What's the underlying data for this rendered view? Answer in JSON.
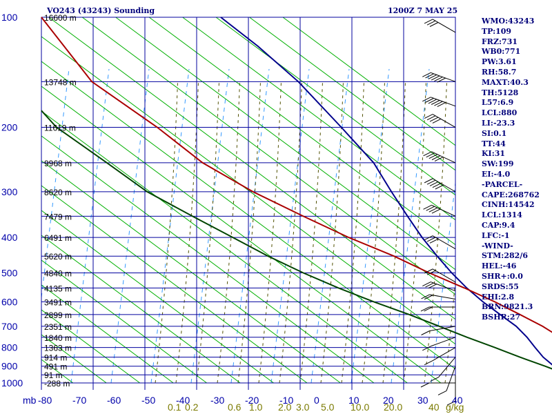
{
  "header": {
    "station": "VO243 (43243) Sounding",
    "time": "1200Z  7 MAY 25"
  },
  "indices": [
    "WMO:43243",
    "TP:109",
    "FRZ:731",
    "WB0:771",
    "PW:3.61",
    "RH:58.7",
    "MAXT:40.3",
    "TH:5128",
    "L57:6.9",
    "LCL:880",
    "LI:-23.3",
    "SI:0.1",
    "TT:44",
    "KI:31",
    "SW:199",
    "EI:-4.0",
    "-PARCEL-",
    "CAPE:268762",
    "CINH:14542",
    "LCL:1314",
    "CAP:9.4",
    "LFC:-1",
    "-WIND-",
    "STM:282/6",
    "HEL:-46",
    "SHR+:0.0",
    "SRDS:55",
    "EHI:2.8",
    "BRN:9821.3",
    "BSHR:27"
  ],
  "colors": {
    "grid": "#00009e",
    "isobar_label": "#0000aa",
    "isotherm_label": "#0000aa",
    "mixing_label": "#7a7a00",
    "height_label": "#000000",
    "dry_adiabat": "#00b000",
    "moist_adiabat": "#505000",
    "mixing_ratio": "#3399ff",
    "temperature": "#00008c",
    "dewpoint": "#00005a",
    "parcel": "#aa0000",
    "wetbulb": "#004400"
  },
  "chart_data": {
    "type": "line",
    "title": "VO243 (43243) Sounding",
    "subtitle": "1200Z  7 MAY 25",
    "pressure_unit": "mb",
    "mixing_unit": "g/kg",
    "pressure_range": [
      100,
      1000
    ],
    "temperature_range": [
      -80,
      0
    ],
    "isobars": [
      {
        "p": 100,
        "label": "100",
        "height": "16600 m"
      },
      {
        "p": 150,
        "label": "",
        "height": "13748 m"
      },
      {
        "p": 200,
        "label": "200",
        "height": "11619 m"
      },
      {
        "p": 250,
        "label": "",
        "height": "9968 m"
      },
      {
        "p": 300,
        "label": "300",
        "height": "8620 m"
      },
      {
        "p": 350,
        "label": "",
        "height": "7479 m"
      },
      {
        "p": 400,
        "label": "400",
        "height": "6491 m"
      },
      {
        "p": 450,
        "label": "",
        "height": "5620 m"
      },
      {
        "p": 500,
        "label": "500",
        "height": "4840 m"
      },
      {
        "p": 550,
        "label": "",
        "height": "4135 m"
      },
      {
        "p": 600,
        "label": "600",
        "height": "3491 m"
      },
      {
        "p": 650,
        "label": "",
        "height": "2899 m"
      },
      {
        "p": 700,
        "label": "700",
        "height": "2351 m"
      },
      {
        "p": 750,
        "label": "",
        "height": "1840 m"
      },
      {
        "p": 800,
        "label": "800",
        "height": "1363 m"
      },
      {
        "p": 850,
        "label": "",
        "height": "914 m"
      },
      {
        "p": 900,
        "label": "900",
        "height": "491 m"
      },
      {
        "p": 950,
        "label": "",
        "height": "91 m"
      },
      {
        "p": 1000,
        "label": "1000",
        "height": "-288 m"
      }
    ],
    "temperature_ticks": [
      "-80",
      "-70",
      "-60",
      "-50",
      "-40",
      "-30",
      "-20",
      "-10",
      "0",
      "10",
      "20",
      "30",
      "40"
    ],
    "axis_prefix": "mb",
    "mixing_ratio_labels": [
      "0.1",
      "0.2",
      "0.6",
      "1.0",
      "2.0",
      "3.0",
      "5.0",
      "10.0",
      "20.0",
      "40"
    ],
    "mixing_ratio_unit_label": "g/kg",
    "series": [
      {
        "key": "temperature",
        "points": [
          [
            100,
            -29.4
          ],
          [
            120,
            -22.5
          ],
          [
            150,
            -15
          ],
          [
            200,
            -7
          ],
          [
            250,
            -1
          ],
          [
            300,
            2.3
          ],
          [
            350,
            5.3
          ],
          [
            400,
            8
          ],
          [
            450,
            10.8
          ],
          [
            500,
            13.5
          ],
          [
            550,
            16.3
          ],
          [
            600,
            19.3
          ],
          [
            650,
            22.5
          ],
          [
            700,
            25.5
          ],
          [
            750,
            27.5
          ],
          [
            800,
            29
          ],
          [
            850,
            30.5
          ],
          [
            900,
            32.5
          ],
          [
            950,
            33.5
          ]
        ]
      },
      {
        "key": "parcel",
        "points": [
          [
            100,
            -80
          ],
          [
            150,
            -70
          ],
          [
            200,
            -57
          ],
          [
            250,
            -48
          ],
          [
            300,
            -38
          ],
          [
            350,
            -28
          ],
          [
            400,
            -19
          ],
          [
            450,
            -10
          ],
          [
            500,
            -3
          ],
          [
            550,
            4
          ],
          [
            600,
            10
          ],
          [
            650,
            15
          ],
          [
            700,
            19.5
          ],
          [
            750,
            23
          ],
          [
            800,
            26.5
          ],
          [
            850,
            30
          ],
          [
            900,
            34
          ],
          [
            950,
            37.5
          ],
          [
            1000,
            41
          ]
        ]
      },
      {
        "key": "wetbulb",
        "points": [
          [
            180,
            -80
          ],
          [
            200,
            -77
          ],
          [
            250,
            -67
          ],
          [
            300,
            -59
          ],
          [
            350,
            -50
          ],
          [
            400,
            -42
          ],
          [
            450,
            -35
          ],
          [
            500,
            -28
          ],
          [
            550,
            -21
          ],
          [
            600,
            -14
          ],
          [
            650,
            -7
          ],
          [
            700,
            -1
          ],
          [
            750,
            4.5
          ],
          [
            800,
            10
          ],
          [
            850,
            15
          ],
          [
            900,
            20
          ],
          [
            950,
            24.5
          ],
          [
            1000,
            29
          ]
        ]
      }
    ],
    "wind_barbs": [
      {
        "p": 110,
        "dir": 300,
        "spd": 25
      },
      {
        "p": 150,
        "dir": 290,
        "spd": 55
      },
      {
        "p": 175,
        "dir": 290,
        "spd": 60
      },
      {
        "p": 200,
        "dir": 300,
        "spd": 40
      },
      {
        "p": 250,
        "dir": 295,
        "spd": 50
      },
      {
        "p": 300,
        "dir": 300,
        "spd": 45
      },
      {
        "p": 350,
        "dir": 295,
        "spd": 40
      },
      {
        "p": 430,
        "dir": 300,
        "spd": 25
      },
      {
        "p": 530,
        "dir": 300,
        "spd": 20
      },
      {
        "p": 560,
        "dir": 290,
        "spd": 25
      },
      {
        "p": 590,
        "dir": 280,
        "spd": 20
      },
      {
        "p": 620,
        "dir": 270,
        "spd": 15
      },
      {
        "p": 700,
        "dir": 260,
        "spd": 10
      },
      {
        "p": 750,
        "dir": 250,
        "spd": 10
      },
      {
        "p": 800,
        "dir": 240,
        "spd": 10
      },
      {
        "p": 850,
        "dir": 220,
        "spd": 5
      },
      {
        "p": 900,
        "dir": 200,
        "spd": 5
      },
      {
        "p": 950,
        "dir": 180,
        "spd": 5
      },
      {
        "p": 1000,
        "dir": 270,
        "spd": 5
      }
    ]
  }
}
